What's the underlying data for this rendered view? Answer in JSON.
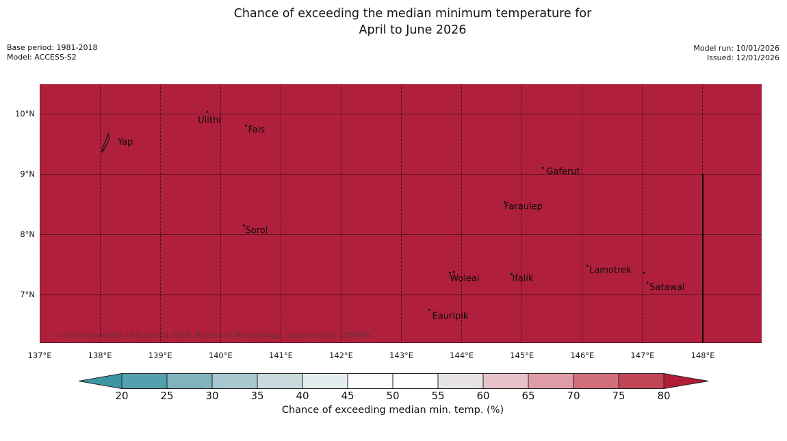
{
  "title": {
    "line1": "Chance of exceeding the median minimum temperature for",
    "line2": "April to June 2026"
  },
  "meta_left": {
    "line1": "Base period: 1981-2018",
    "line2": "Model: ACCESS-S2"
  },
  "meta_right": {
    "line1": "Model run: 10/01/2026",
    "line2": "Issued: 12/01/2026"
  },
  "map": {
    "fill_color": "#b0203c",
    "copyright": "© Commonwealth of Australia 2026, Bureau of Meteorology, supported by COSPPac",
    "lon_ticks": [
      {
        "deg": 137,
        "label": "137°E"
      },
      {
        "deg": 138,
        "label": "138°E"
      },
      {
        "deg": 139,
        "label": "139°E"
      },
      {
        "deg": 140,
        "label": "140°E"
      },
      {
        "deg": 141,
        "label": "141°E"
      },
      {
        "deg": 142,
        "label": "142°E"
      },
      {
        "deg": 143,
        "label": "143°E"
      },
      {
        "deg": 144,
        "label": "144°E"
      },
      {
        "deg": 145,
        "label": "145°E"
      },
      {
        "deg": 146,
        "label": "146°E"
      },
      {
        "deg": 147,
        "label": "147°E"
      },
      {
        "deg": 148,
        "label": "148°E"
      }
    ],
    "lat_ticks": [
      {
        "deg": 10,
        "label": "10°N"
      },
      {
        "deg": 9,
        "label": "9°N"
      },
      {
        "deg": 8,
        "label": "8°N"
      },
      {
        "deg": 7,
        "label": "7°N"
      }
    ],
    "boundary_line": {
      "lon": 148,
      "from_lat": 9
    },
    "islands": [
      {
        "name": "Yap",
        "lon": 138.42,
        "lat": 9.523,
        "icon": "yap",
        "icon_lon": 138.101,
        "icon_lat": 9.512,
        "markers": []
      },
      {
        "name": "Ulithi",
        "lon": 139.815,
        "lat": 9.886,
        "markers": [
          [
            139.781,
            10.034
          ]
        ]
      },
      {
        "name": "Fais",
        "lon": 140.598,
        "lat": 9.727,
        "markers": [
          [
            140.417,
            9.807
          ]
        ]
      },
      {
        "name": "Sorol",
        "lon": 140.598,
        "lat": 8.059,
        "markers": [
          [
            140.383,
            8.149
          ]
        ]
      },
      {
        "name": "Gaferut",
        "lon": 145.684,
        "lat": 9.035,
        "markers": [
          [
            145.343,
            9.103
          ]
        ]
      },
      {
        "name": "Faraulep",
        "lon": 145.026,
        "lat": 8.456,
        "markers": [
          [
            144.708,
            8.536
          ]
        ]
      },
      {
        "name": "Woleai",
        "lon": 144.049,
        "lat": 7.264,
        "markers": [
          [
            143.8,
            7.366
          ],
          [
            143.868,
            7.377
          ]
        ]
      },
      {
        "name": "Ifalik",
        "lon": 145.014,
        "lat": 7.264,
        "markers": [
          [
            144.821,
            7.343
          ]
        ]
      },
      {
        "name": "Lamotrek",
        "lon": 146.467,
        "lat": 7.4,
        "markers": [
          [
            146.081,
            7.477
          ],
          [
            147.023,
            7.364
          ]
        ]
      },
      {
        "name": "Satawal",
        "lon": 147.409,
        "lat": 7.117,
        "markers": [
          [
            147.08,
            7.196
          ]
        ]
      },
      {
        "name": "Eauripik",
        "lon": 143.811,
        "lat": 6.64,
        "markers": [
          [
            143.459,
            6.754
          ]
        ]
      }
    ]
  },
  "colorbar": {
    "label": "Chance of exceeding median min. temp. (%)",
    "ticks": [
      20,
      25,
      30,
      35,
      40,
      45,
      50,
      55,
      60,
      65,
      70,
      75,
      80
    ],
    "segment_colors": [
      "#55a0af",
      "#7fb3be",
      "#a6c8ce",
      "#c9dadd",
      "#e4edee",
      "#fbfcfc",
      "#ffffff",
      "#e8e4e3",
      "#e6c2c8",
      "#dd9ca6",
      "#d06e7c",
      "#c24556"
    ],
    "under_color": "#3d95a4",
    "over_color": "#b01d37",
    "outline_color": "#222222"
  },
  "chart_data": {
    "type": "heatmap",
    "title": "Chance of exceeding the median minimum temperature for April to June 2026",
    "x_axis": {
      "tick_labels": [
        "137°E",
        "138°E",
        "139°E",
        "140°E",
        "141°E",
        "142°E",
        "143°E",
        "144°E",
        "145°E",
        "146°E",
        "147°E",
        "148°E"
      ],
      "range_deg_east": [
        137,
        148.98
      ]
    },
    "y_axis": {
      "tick_labels": [
        "7°N",
        "8°N",
        "9°N",
        "10°N"
      ],
      "range_deg_north": [
        6.21,
        10.49
      ]
    },
    "colorbar": {
      "label": "Chance of exceeding median min. temp. (%)",
      "tick_values": [
        20,
        25,
        30,
        35,
        40,
        45,
        50,
        55,
        60,
        65,
        70,
        75,
        80
      ],
      "arrow_ends": true
    },
    "depicted_values": "Entire mapped region is shaded in the above-80% class (dark red / over color)",
    "labeled_places": [
      "Yap",
      "Ulithi",
      "Fais",
      "Sorol",
      "Gaferut",
      "Faraulep",
      "Woleai",
      "Ifalik",
      "Lamotrek",
      "Satawal",
      "Eauripik"
    ]
  }
}
